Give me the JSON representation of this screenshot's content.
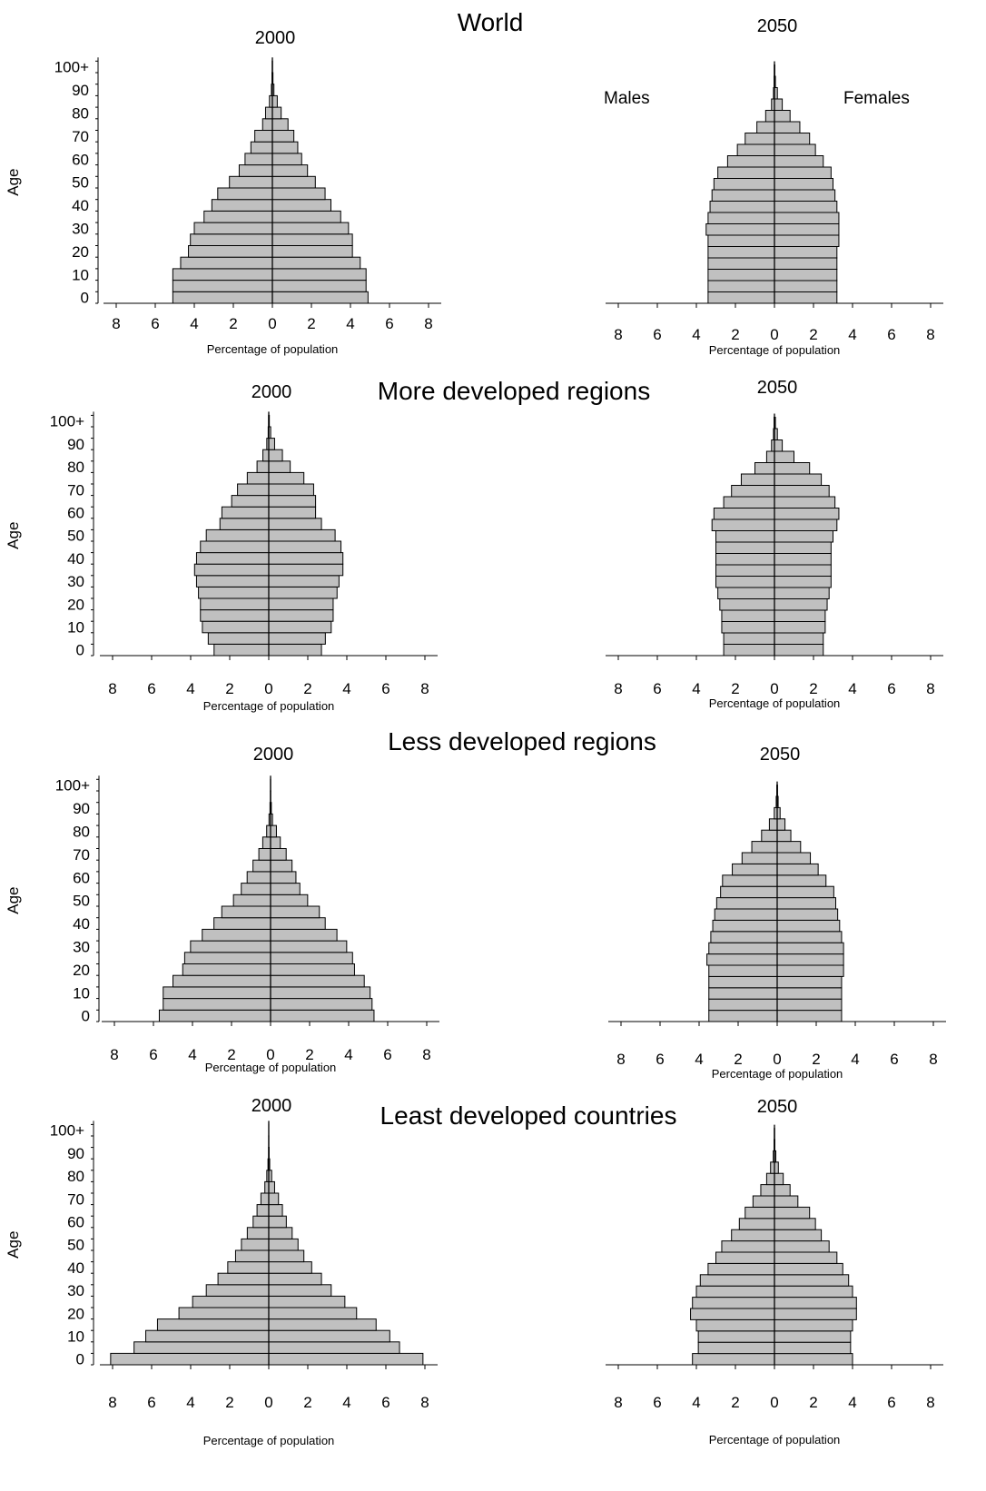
{
  "figure": {
    "x_ticks": [
      "8",
      "6",
      "4",
      "2",
      "0",
      "2",
      "4",
      "6",
      "8"
    ],
    "y_ticks": [
      "100+",
      "90",
      "80",
      "70",
      "60",
      "50",
      "40",
      "30",
      "20",
      "10",
      "0"
    ],
    "colors": {
      "bar_fill": "#c0c0c0",
      "bar_stroke": "#000000",
      "axis": "#000000"
    }
  },
  "chart_data": [
    {
      "type": "bar",
      "title": "World",
      "subtitle": "2000",
      "xlabel": "Percentage of population",
      "ylabel": "Age",
      "xlim": [
        -8,
        8
      ],
      "legend": "",
      "series_labels": {
        "left": "",
        "right": ""
      },
      "age_groups": [
        "0-4",
        "5-9",
        "10-14",
        "15-19",
        "20-24",
        "25-29",
        "30-34",
        "35-39",
        "40-44",
        "45-49",
        "50-54",
        "55-59",
        "60-64",
        "65-69",
        "70-74",
        "75-79",
        "80-84",
        "85-89",
        "90-94",
        "95-99",
        "100+"
      ],
      "series": [
        {
          "name": "",
          "values": [
            5.1,
            5.1,
            5.1,
            4.7,
            4.3,
            4.2,
            4.0,
            3.5,
            3.1,
            2.8,
            2.2,
            1.7,
            1.4,
            1.1,
            0.9,
            0.5,
            0.35,
            0.15,
            0.05,
            0.02,
            0.01
          ]
        },
        {
          "name": "",
          "values": [
            4.9,
            4.8,
            4.8,
            4.5,
            4.1,
            4.1,
            3.9,
            3.5,
            3.0,
            2.7,
            2.2,
            1.8,
            1.5,
            1.3,
            1.1,
            0.8,
            0.45,
            0.25,
            0.08,
            0.03,
            0.01
          ]
        }
      ]
    },
    {
      "type": "bar",
      "title": "",
      "subtitle": "2050",
      "xlabel": "Percentage of population",
      "ylabel": "",
      "xlim": [
        -8,
        8
      ],
      "legend": "",
      "series_labels": {
        "left": "Males",
        "right": "Females"
      },
      "age_groups": [
        "0-4",
        "5-9",
        "10-14",
        "15-19",
        "20-24",
        "25-29",
        "30-34",
        "35-39",
        "40-44",
        "45-49",
        "50-54",
        "55-59",
        "60-64",
        "65-69",
        "70-74",
        "75-79",
        "80-84",
        "85-89",
        "90-94",
        "95-99",
        "100+"
      ],
      "series": [
        {
          "name": "Males",
          "values": [
            3.4,
            3.4,
            3.4,
            3.4,
            3.4,
            3.4,
            3.5,
            3.4,
            3.3,
            3.2,
            3.1,
            2.9,
            2.4,
            1.9,
            1.5,
            0.9,
            0.45,
            0.15,
            0.05,
            0.02,
            0.01
          ]
        },
        {
          "name": "Females",
          "values": [
            3.2,
            3.2,
            3.2,
            3.2,
            3.2,
            3.3,
            3.3,
            3.3,
            3.2,
            3.1,
            3.0,
            2.9,
            2.5,
            2.1,
            1.8,
            1.3,
            0.8,
            0.4,
            0.15,
            0.05,
            0.02
          ]
        }
      ]
    },
    {
      "type": "bar",
      "title": "More developed regions",
      "subtitle": "2000",
      "xlabel": "Percentage of population",
      "ylabel": "Age",
      "xlim": [
        -8,
        8
      ],
      "legend": "",
      "series_labels": {
        "left": "",
        "right": ""
      },
      "age_groups": [
        "0-4",
        "5-9",
        "10-14",
        "15-19",
        "20-24",
        "25-29",
        "30-34",
        "35-39",
        "40-44",
        "45-49",
        "50-54",
        "55-59",
        "60-64",
        "65-69",
        "70-74",
        "75-79",
        "80-84",
        "85-89",
        "90-94",
        "95-99",
        "100+"
      ],
      "series": [
        {
          "name": "",
          "values": [
            2.8,
            3.1,
            3.4,
            3.5,
            3.5,
            3.6,
            3.7,
            3.8,
            3.7,
            3.5,
            3.2,
            2.5,
            2.4,
            1.9,
            1.6,
            1.1,
            0.6,
            0.3,
            0.1,
            0.03,
            0.01
          ]
        },
        {
          "name": "",
          "values": [
            2.7,
            2.9,
            3.2,
            3.3,
            3.3,
            3.5,
            3.6,
            3.8,
            3.8,
            3.7,
            3.4,
            2.7,
            2.4,
            2.4,
            2.3,
            1.8,
            1.1,
            0.7,
            0.3,
            0.1,
            0.03
          ]
        }
      ]
    },
    {
      "type": "bar",
      "title": "",
      "subtitle": "2050",
      "xlabel": "Percentage of population",
      "ylabel": "",
      "xlim": [
        -8,
        8
      ],
      "legend": "",
      "series_labels": {
        "left": "",
        "right": ""
      },
      "age_groups": [
        "0-4",
        "5-9",
        "10-14",
        "15-19",
        "20-24",
        "25-29",
        "30-34",
        "35-39",
        "40-44",
        "45-49",
        "50-54",
        "55-59",
        "60-64",
        "65-69",
        "70-74",
        "75-79",
        "80-84",
        "85-89",
        "90-94",
        "95-99",
        "100+"
      ],
      "series": [
        {
          "name": "",
          "values": [
            2.6,
            2.6,
            2.7,
            2.7,
            2.8,
            2.9,
            3.0,
            3.0,
            3.0,
            3.0,
            3.0,
            3.2,
            3.1,
            2.6,
            2.2,
            1.7,
            1.0,
            0.4,
            0.15,
            0.05,
            0.02
          ]
        },
        {
          "name": "",
          "values": [
            2.5,
            2.5,
            2.6,
            2.6,
            2.7,
            2.8,
            2.9,
            2.9,
            2.9,
            2.9,
            3.0,
            3.2,
            3.3,
            3.1,
            2.8,
            2.4,
            1.8,
            1.0,
            0.4,
            0.15,
            0.05
          ]
        }
      ]
    },
    {
      "type": "bar",
      "title": "Less developed regions",
      "subtitle": "2000",
      "xlabel": "Percentage of population",
      "ylabel": "Age",
      "xlim": [
        -8,
        8
      ],
      "legend": "",
      "series_labels": {
        "left": "",
        "right": ""
      },
      "age_groups": [
        "0-4",
        "5-9",
        "10-14",
        "15-19",
        "20-24",
        "25-29",
        "30-34",
        "35-39",
        "40-44",
        "45-49",
        "50-54",
        "55-59",
        "60-64",
        "65-69",
        "70-74",
        "75-79",
        "80-84",
        "85-89",
        "90-94",
        "95-99",
        "100+"
      ],
      "series": [
        {
          "name": "",
          "values": [
            5.7,
            5.5,
            5.5,
            5.0,
            4.5,
            4.4,
            4.1,
            3.5,
            2.9,
            2.5,
            1.9,
            1.5,
            1.2,
            0.9,
            0.6,
            0.4,
            0.2,
            0.08,
            0.03,
            0.01,
            0.005
          ]
        },
        {
          "name": "",
          "values": [
            5.3,
            5.2,
            5.1,
            4.8,
            4.3,
            4.2,
            3.9,
            3.4,
            2.8,
            2.5,
            1.9,
            1.5,
            1.3,
            1.1,
            0.8,
            0.5,
            0.3,
            0.1,
            0.04,
            0.01,
            0.005
          ]
        }
      ]
    },
    {
      "type": "bar",
      "title": "",
      "subtitle": "2050",
      "xlabel": "Percentage of population",
      "ylabel": "",
      "xlim": [
        -8,
        8
      ],
      "legend": "",
      "series_labels": {
        "left": "",
        "right": ""
      },
      "age_groups": [
        "0-4",
        "5-9",
        "10-14",
        "15-19",
        "20-24",
        "25-29",
        "30-34",
        "35-39",
        "40-44",
        "45-49",
        "50-54",
        "55-59",
        "60-64",
        "65-69",
        "70-74",
        "75-79",
        "80-84",
        "85-89",
        "90-94",
        "95-99",
        "100+"
      ],
      "series": [
        {
          "name": "",
          "values": [
            3.5,
            3.5,
            3.5,
            3.5,
            3.5,
            3.6,
            3.5,
            3.4,
            3.3,
            3.2,
            3.1,
            2.9,
            2.8,
            2.3,
            1.8,
            1.3,
            0.8,
            0.4,
            0.15,
            0.05,
            0.02
          ]
        },
        {
          "name": "",
          "values": [
            3.3,
            3.3,
            3.3,
            3.3,
            3.4,
            3.4,
            3.4,
            3.3,
            3.2,
            3.1,
            3.0,
            2.9,
            2.5,
            2.1,
            1.7,
            1.2,
            0.7,
            0.4,
            0.15,
            0.05,
            0.02
          ]
        }
      ]
    },
    {
      "type": "bar",
      "title": "Least developed countries",
      "subtitle": "2000",
      "xlabel": "Percentage of population",
      "ylabel": "Age",
      "xlim": [
        -8,
        8
      ],
      "legend": "",
      "series_labels": {
        "left": "",
        "right": ""
      },
      "age_groups": [
        "0-4",
        "5-9",
        "10-14",
        "15-19",
        "20-24",
        "25-29",
        "30-34",
        "35-39",
        "40-44",
        "45-49",
        "50-54",
        "55-59",
        "60-64",
        "65-69",
        "70-74",
        "75-79",
        "80-84",
        "85-89",
        "90-94",
        "95-99",
        "100+"
      ],
      "series": [
        {
          "name": "",
          "values": [
            8.1,
            6.9,
            6.3,
            5.7,
            4.6,
            3.9,
            3.2,
            2.6,
            2.1,
            1.7,
            1.4,
            1.1,
            0.8,
            0.6,
            0.4,
            0.2,
            0.1,
            0.04,
            0.01,
            0.005,
            0.002
          ]
        },
        {
          "name": "",
          "values": [
            7.9,
            6.7,
            6.2,
            5.5,
            4.5,
            3.9,
            3.2,
            2.7,
            2.2,
            1.8,
            1.5,
            1.2,
            0.9,
            0.7,
            0.5,
            0.3,
            0.15,
            0.05,
            0.02,
            0.005,
            0.002
          ]
        }
      ]
    },
    {
      "type": "bar",
      "title": "",
      "subtitle": "2050",
      "xlabel": "Percentage of population",
      "ylabel": "",
      "xlim": [
        -8,
        8
      ],
      "legend": "",
      "series_labels": {
        "left": "",
        "right": ""
      },
      "age_groups": [
        "0-4",
        "5-9",
        "10-14",
        "15-19",
        "20-24",
        "25-29",
        "30-34",
        "35-39",
        "40-44",
        "45-49",
        "50-54",
        "55-59",
        "60-64",
        "65-69",
        "70-74",
        "75-79",
        "80-84",
        "85-89",
        "90-94",
        "95-99",
        "100+"
      ],
      "series": [
        {
          "name": "",
          "values": [
            4.2,
            3.9,
            3.9,
            4.0,
            4.3,
            4.2,
            4.0,
            3.8,
            3.4,
            3.0,
            2.7,
            2.2,
            1.8,
            1.5,
            1.1,
            0.7,
            0.4,
            0.2,
            0.06,
            0.02,
            0.01
          ]
        },
        {
          "name": "",
          "values": [
            4.0,
            3.9,
            3.9,
            4.0,
            4.2,
            4.2,
            4.0,
            3.8,
            3.5,
            3.2,
            2.8,
            2.4,
            2.1,
            1.8,
            1.2,
            0.8,
            0.45,
            0.2,
            0.07,
            0.02,
            0.01
          ]
        }
      ]
    }
  ]
}
